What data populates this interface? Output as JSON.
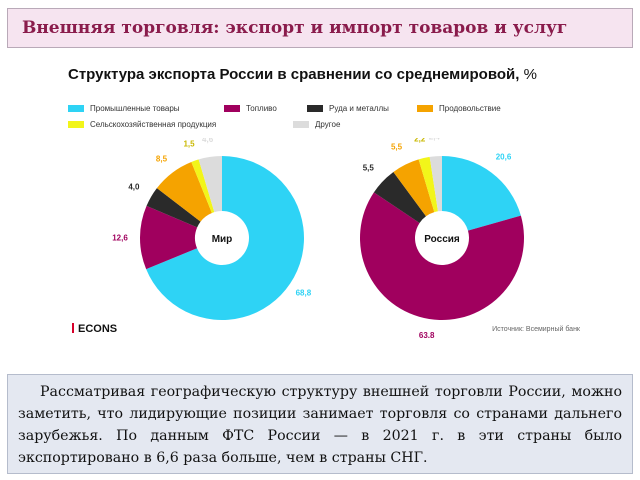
{
  "slide": {
    "title": "Внешняя торговля: экспорт и импорт товаров и услуг",
    "body_text": "Рассматривая географическую структуру внешней торговли России, можно заметить, что лидирующие позиции занимает торговля со странами дальнего зарубежья. По данным ФТС России — в 2021 г. в эти страны было экспортировано в 6,6 раза больше, чем в страны СНГ."
  },
  "figure": {
    "title": "Структура экспорта России в сравнении со среднемировой,",
    "unit": "%",
    "logo": "ECONS",
    "source": "Источник: Всемирный банк"
  },
  "chart_data": [
    {
      "type": "pie",
      "donut": true,
      "center_label": "Мир",
      "categories": [
        "Промышленные товары",
        "Топливо",
        "Руда и металлы",
        "Продовольствие",
        "Сельскохозяйственная продукция",
        "Другое"
      ],
      "values": [
        68.8,
        12.6,
        4.0,
        8.5,
        1.5,
        4.6
      ],
      "value_labels": [
        "68,8",
        "12,6",
        "4,0",
        "8,5",
        "1,5",
        "4,6"
      ],
      "colors": [
        "#2ed3f5",
        "#a0005e",
        "#2a2a2a",
        "#f5a300",
        "#f2f51a",
        "#dcdcdc"
      ],
      "legend_position": "top"
    },
    {
      "type": "pie",
      "donut": true,
      "center_label": "Россия",
      "categories": [
        "Промышленные товары",
        "Топливо",
        "Руда и металлы",
        "Продовольствие",
        "Сельскохозяйственная продукция",
        "Другое"
      ],
      "values": [
        20.6,
        63.8,
        5.5,
        5.5,
        2.2,
        2.4
      ],
      "value_labels": [
        "20,6",
        "63,8",
        "5,5",
        "5,5",
        "2,2",
        "2,4"
      ],
      "colors": [
        "#2ed3f5",
        "#a0005e",
        "#2a2a2a",
        "#f5a300",
        "#f2f51a",
        "#dcdcdc"
      ],
      "legend_position": "top"
    }
  ]
}
